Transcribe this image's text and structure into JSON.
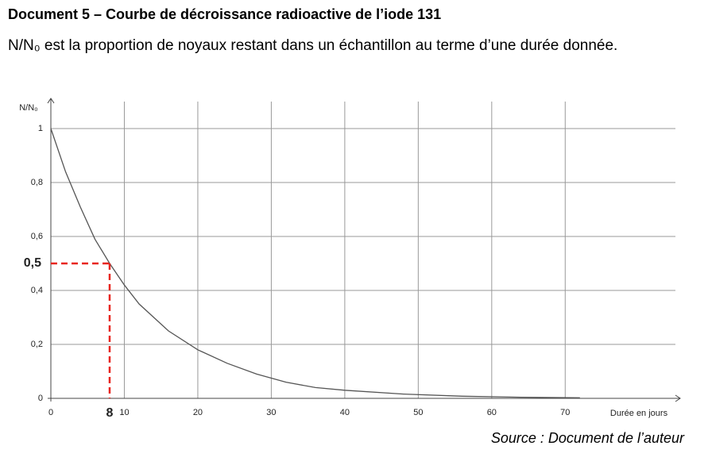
{
  "document": {
    "title": "Document 5 – Courbe de décroissance radioactive de l’iode 131",
    "text": "N/N₀ est la proportion de noyaux restant dans un échantillon au terme d’une durée donnée.",
    "source": "Source : Document de l’auteur"
  },
  "chart_data": {
    "type": "line",
    "y_label": "N/N₀",
    "x_label": "Durée en jours",
    "x": [
      0,
      2,
      4,
      6,
      8,
      10,
      12,
      14,
      16,
      20,
      24,
      28,
      32,
      36,
      40,
      48,
      56,
      64,
      72
    ],
    "values": [
      1,
      0.84,
      0.71,
      0.59,
      0.5,
      0.42,
      0.35,
      0.3,
      0.25,
      0.18,
      0.13,
      0.09,
      0.06,
      0.04,
      0.03,
      0.016,
      0.008,
      0.004,
      0.002
    ],
    "color": "#555555",
    "xlim": [
      0,
      85
    ],
    "ylim": [
      0,
      1.1
    ],
    "xticks": [
      0,
      10,
      20,
      30,
      40,
      50,
      60,
      70
    ],
    "yticks": [
      0,
      {
        "value": 0.2,
        "label": "0,2"
      },
      {
        "value": 0.4,
        "label": "0,4"
      },
      {
        "value": 0.6,
        "label": "0,6"
      },
      {
        "value": 0.8,
        "label": "0,8"
      },
      1
    ],
    "grid": true,
    "annotation": {
      "x": 8,
      "y": 0.5,
      "x_label": "8",
      "y_label": "0,5",
      "color": "#e8251f"
    }
  }
}
